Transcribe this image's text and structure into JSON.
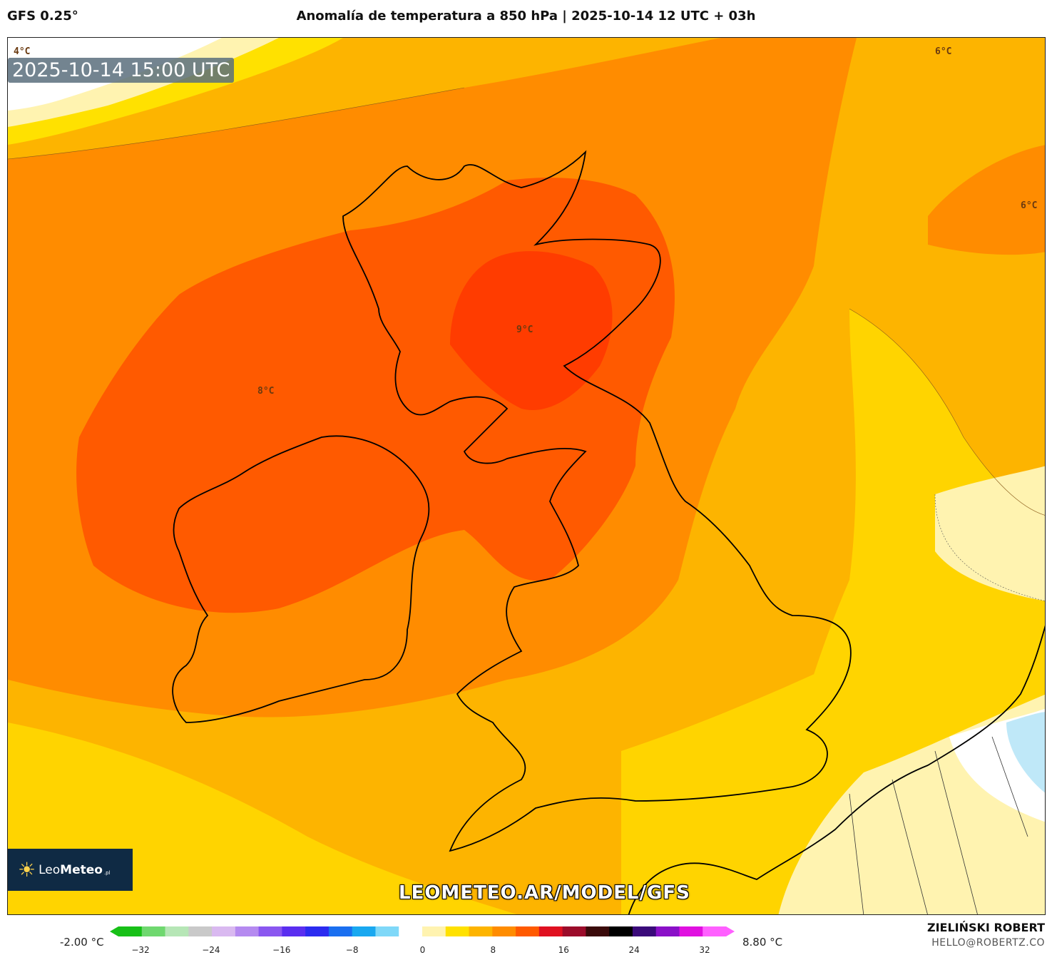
{
  "header": {
    "model": "GFS 0.25°",
    "title": "Anomalía de temperatura a 850 hPa | 2025-10-14 12 UTC + 03h"
  },
  "map": {
    "timestamp": "2025-10-14 15:00 UTC",
    "contour_labels": [
      "4°C",
      "6°C",
      "6°C",
      "9°C",
      "8°C"
    ],
    "watermark_url": "LEOMETEO.AR/MODEL/GFS",
    "logo": {
      "name_light": "Leo",
      "name_bold": "Meteo",
      "tld": ".pl"
    }
  },
  "colorbar": {
    "min_label": "-2.00 °C",
    "max_label": "8.80 °C",
    "ticks": [
      "−32",
      "−24",
      "−16",
      "−8",
      "0",
      "8",
      "16",
      "24",
      "32"
    ],
    "colors": [
      "#17c017",
      "#6fd86f",
      "#b6e6b6",
      "#c9c9c9",
      "#d9b9f0",
      "#b58af0",
      "#8a57f0",
      "#5a2ef0",
      "#2b2bf0",
      "#1a6ff0",
      "#19a8f0",
      "#7fd8f8",
      "#ffffff",
      "#fff3b0",
      "#ffe100",
      "#fdb400",
      "#ff8c00",
      "#ff5a00",
      "#e01020",
      "#9b0c2a",
      "#3a0a0a",
      "#000000",
      "#3a0a7a",
      "#8a10c8",
      "#e010e0",
      "#ff60ff"
    ]
  },
  "credits": {
    "author": "ZIELIŃSKI ROBERT",
    "email": "HELLO@ROBERTZ.CO"
  }
}
